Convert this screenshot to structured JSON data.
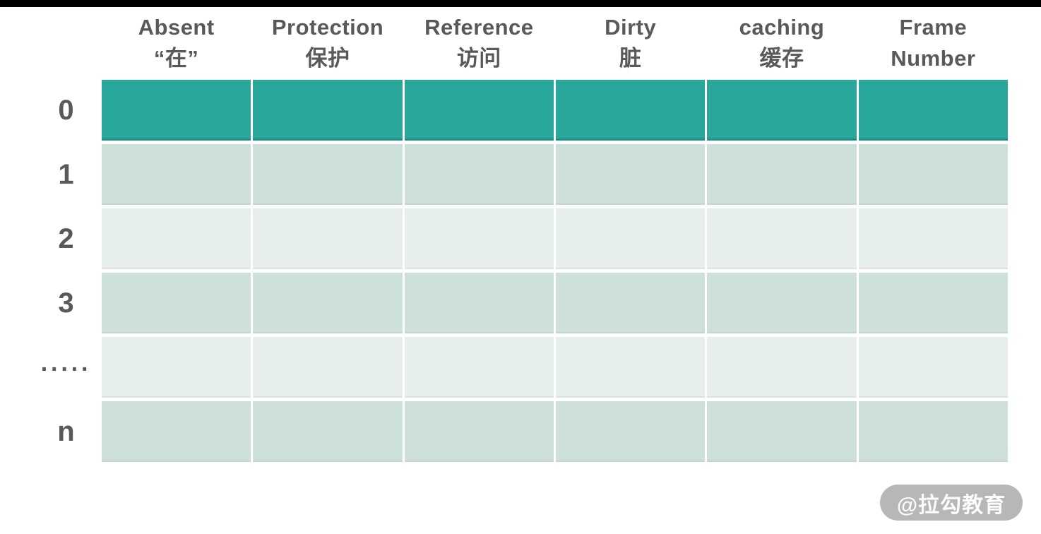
{
  "table": {
    "columns": [
      {
        "line1": "Absent",
        "line2": "“在”"
      },
      {
        "line1": "Protection",
        "line2": "保护"
      },
      {
        "line1": "Reference",
        "line2": "访问"
      },
      {
        "line1": "Dirty",
        "line2": "脏"
      },
      {
        "line1": "caching",
        "line2": "缓存"
      },
      {
        "line1": "Frame",
        "line2": "Number"
      }
    ],
    "row_labels": [
      "0",
      "1",
      "2",
      "3",
      "·····",
      "n"
    ],
    "body_cells_empty": true
  },
  "watermark": {
    "label": "@拉勾教育"
  },
  "colors": {
    "header_row_fill": "#2aa79b",
    "band_dark_fill": "#cee0dc",
    "band_light_fill": "#e7efec",
    "text_gray": "#595959",
    "watermark_bg": "#b2b2b2",
    "letterbox": "#000000",
    "page_bg": "#ffffff"
  }
}
